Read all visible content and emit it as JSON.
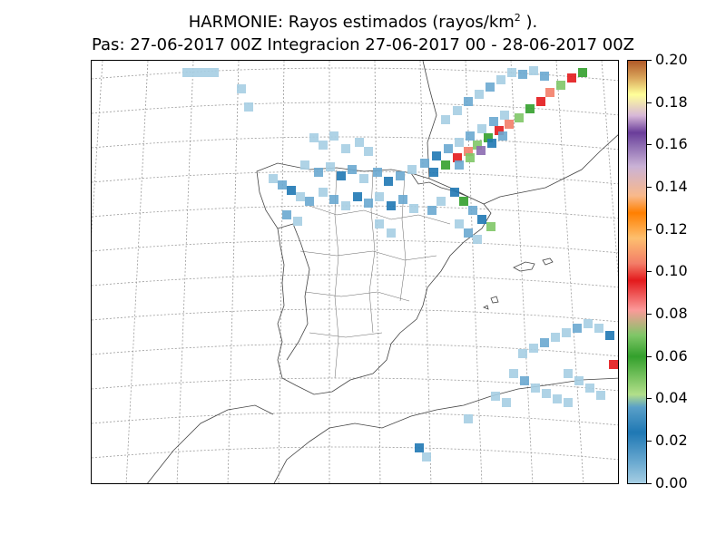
{
  "title": {
    "line1_text": "HARMONIE: Rayos estimados  (rayos/km",
    "line1_sup": "2",
    "line1_end": " ).",
    "line2": "Pas: 27-06-2017 00Z Integracion 27-06-2017 00 - 28-06-2017 00Z"
  },
  "colorbar": {
    "ticks": [
      "0.20",
      "0.18",
      "0.16",
      "0.14",
      "0.12",
      "0.10",
      "0.08",
      "0.06",
      "0.04",
      "0.02",
      "0.00"
    ],
    "colors": [
      "#a6cee3",
      "#1f78b4",
      "#b2df8a",
      "#33a02c",
      "#fb9a99",
      "#e31a1c",
      "#fdbf6f",
      "#ff7f00",
      "#cab2d6",
      "#6a3d9a",
      "#ffff99",
      "#b15928"
    ]
  }
}
